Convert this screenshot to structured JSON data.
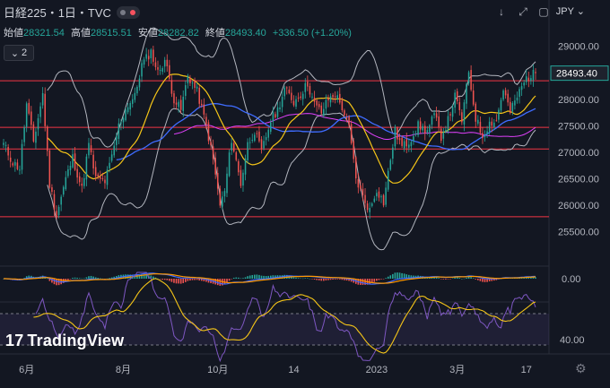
{
  "header": {
    "symbol_title": "日経225・1日・TVC",
    "open_label": "始値",
    "open_value": "28321.54",
    "high_label": "高値",
    "high_value": "28515.51",
    "low_label": "安値",
    "low_value": "28282.82",
    "close_label": "終値",
    "close_value": "28493.40",
    "change": "+336.50 (+1.20%)",
    "indicator_count": "2"
  },
  "toolbar": {
    "currency": "JPY"
  },
  "branding": {
    "logo_text": "TradingView"
  },
  "colors": {
    "background": "#131722",
    "up": "#26a69a",
    "down": "#ef5350",
    "bollinger": "#b2b5be",
    "ma_short": "#e040fb",
    "ma_mid": "#f5c518",
    "ma_long": "#3f6cff",
    "macd": "#3f6cff",
    "signal": "#ff9800",
    "rsi": "#7e57c2",
    "rsi_ma": "#f5c518",
    "hline": "#f23645"
  },
  "chart_data": {
    "type": "candlestick",
    "timeframe": "1日",
    "y_axis_ticks": [
      29000,
      28500,
      28000,
      27500,
      27000,
      26500,
      26000,
      25500
    ],
    "ylim": [
      25050,
      29300
    ],
    "last_price_label": "28493.40",
    "horizontal_lines": [
      28350,
      27470,
      27060,
      25780
    ],
    "x_axis_labels": [
      "6月",
      "8月",
      "10月",
      "14",
      "2023",
      "3月",
      "17"
    ],
    "x_axis_label_bars": [
      10,
      52,
      93,
      126,
      162,
      197,
      227
    ],
    "bars": 232,
    "close_path": [
      [
        0,
        27150
      ],
      [
        4,
        26800
      ],
      [
        7,
        26700
      ],
      [
        10,
        27900
      ],
      [
        13,
        27200
      ],
      [
        17,
        28100
      ],
      [
        20,
        26400
      ],
      [
        23,
        25800
      ],
      [
        27,
        26500
      ],
      [
        30,
        26900
      ],
      [
        34,
        26300
      ],
      [
        37,
        27150
      ],
      [
        40,
        26500
      ],
      [
        44,
        26450
      ],
      [
        47,
        26900
      ],
      [
        50,
        27500
      ],
      [
        54,
        27900
      ],
      [
        57,
        28050
      ],
      [
        60,
        28650
      ],
      [
        64,
        28900
      ],
      [
        67,
        28500
      ],
      [
        70,
        28750
      ],
      [
        74,
        28000
      ],
      [
        77,
        27800
      ],
      [
        80,
        28450
      ],
      [
        84,
        28150
      ],
      [
        88,
        27500
      ],
      [
        91,
        26850
      ],
      [
        94,
        26000
      ],
      [
        96,
        26250
      ],
      [
        99,
        27250
      ],
      [
        103,
        26400
      ],
      [
        106,
        27150
      ],
      [
        109,
        27400
      ],
      [
        112,
        27000
      ],
      [
        116,
        27600
      ],
      [
        119,
        27800
      ],
      [
        122,
        28200
      ],
      [
        126,
        27950
      ],
      [
        129,
        28100
      ],
      [
        132,
        28300
      ],
      [
        135,
        27900
      ],
      [
        138,
        27750
      ],
      [
        141,
        28000
      ],
      [
        144,
        28100
      ],
      [
        147,
        27850
      ],
      [
        150,
        27450
      ],
      [
        153,
        26500
      ],
      [
        156,
        26150
      ],
      [
        159,
        25900
      ],
      [
        162,
        26300
      ],
      [
        165,
        26050
      ],
      [
        167,
        26600
      ],
      [
        170,
        27400
      ],
      [
        173,
        27100
      ],
      [
        176,
        27200
      ],
      [
        180,
        27500
      ],
      [
        184,
        27400
      ],
      [
        187,
        27700
      ],
      [
        190,
        27300
      ],
      [
        193,
        27600
      ],
      [
        196,
        28050
      ],
      [
        199,
        27600
      ],
      [
        202,
        28500
      ],
      [
        205,
        27650
      ],
      [
        208,
        27300
      ],
      [
        211,
        27550
      ],
      [
        214,
        27600
      ],
      [
        217,
        28200
      ],
      [
        220,
        27750
      ],
      [
        223,
        28050
      ],
      [
        227,
        28400
      ],
      [
        231,
        28493.4
      ]
    ],
    "macd": {
      "y_axis_ticks": [
        0.0
      ],
      "zero_label": "0.00"
    },
    "rsi": {
      "y_axis_ticks": [
        40.0
      ],
      "tick_label": "40.00"
    }
  }
}
